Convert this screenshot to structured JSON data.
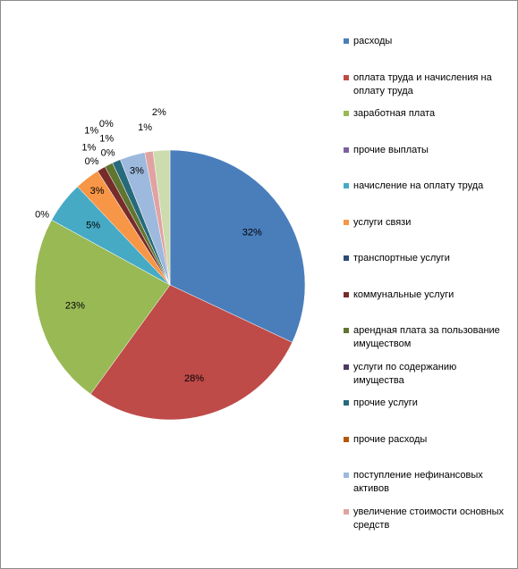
{
  "chart_data": {
    "type": "pie",
    "categories": [
      "расходы",
      "оплата труда и начисления на оплату труда",
      "заработная плата",
      "прочие выплаты",
      "начисление на оплату труда",
      "услуги связи",
      "транспортные услуги",
      "коммунальные услуги",
      "арендная плата за пользование имуществом",
      "услуги по содержанию имущества",
      "прочие услуги",
      "прочие расходы",
      "поступление нефинансовых активов",
      "увеличение стоимости основных средств",
      null
    ],
    "values": [
      32,
      28,
      23,
      0,
      5,
      3,
      0,
      1,
      1,
      0,
      1,
      0,
      3,
      1,
      2
    ],
    "value_labels": [
      "32%",
      "28%",
      "23%",
      "0%",
      "5%",
      "3%",
      "0%",
      "1%",
      "1%",
      "0%",
      "1%",
      "0%",
      "3%",
      "1%",
      "2%"
    ],
    "colors": [
      "#4a7ebb",
      "#be4b48",
      "#98b954",
      "#7d60a0",
      "#46aac5",
      "#f79646",
      "#2c4d75",
      "#772c2a",
      "#5f7530",
      "#4d3b62",
      "#276a7c",
      "#b65708",
      "#9db9dd",
      "#e0a3a2",
      "#cddcae"
    ],
    "legend": "right"
  }
}
